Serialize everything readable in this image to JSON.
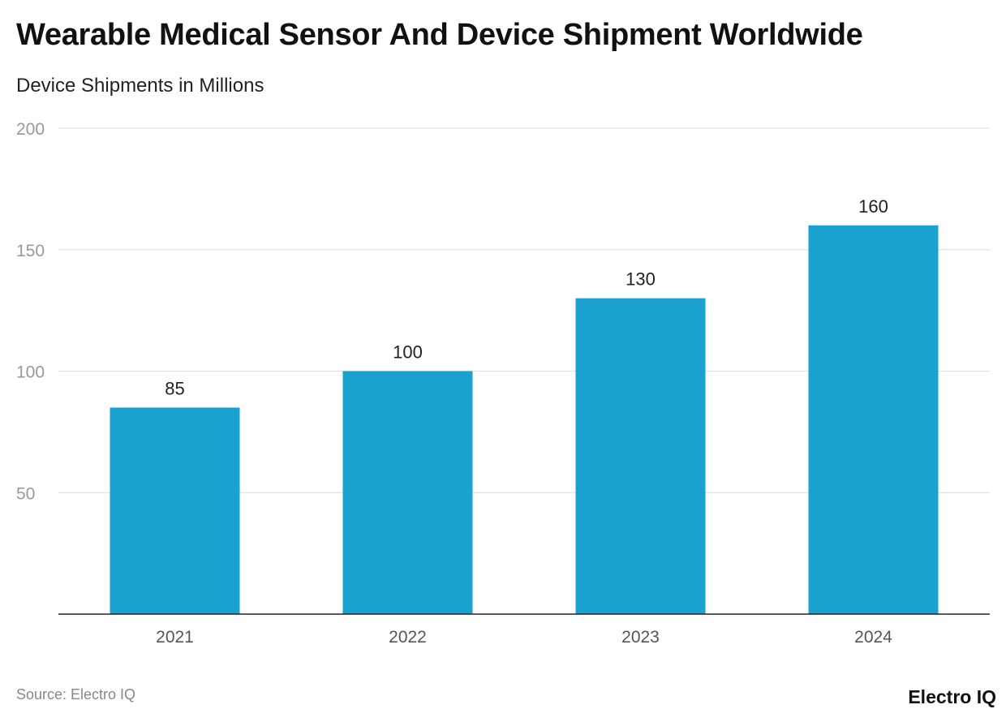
{
  "title": "Wearable Medical Sensor And Device Shipment Worldwide",
  "subtitle": "Device Shipments in Millions",
  "source": "Source: Electro IQ",
  "logo": "Electro IQ",
  "colors": {
    "bar": "#1aa1cf",
    "grid": "#e3e3e3",
    "axis": "#222222"
  },
  "chart_data": {
    "type": "bar",
    "title": "Wearable Medical Sensor And Device Shipment Worldwide",
    "subtitle": "Device Shipments in Millions",
    "categories": [
      "2021",
      "2022",
      "2023",
      "2024"
    ],
    "values": [
      85,
      100,
      130,
      160
    ],
    "ylim": [
      0,
      200
    ],
    "yticks": [
      50,
      100,
      150,
      200
    ],
    "grid": true,
    "data_labels": true
  }
}
